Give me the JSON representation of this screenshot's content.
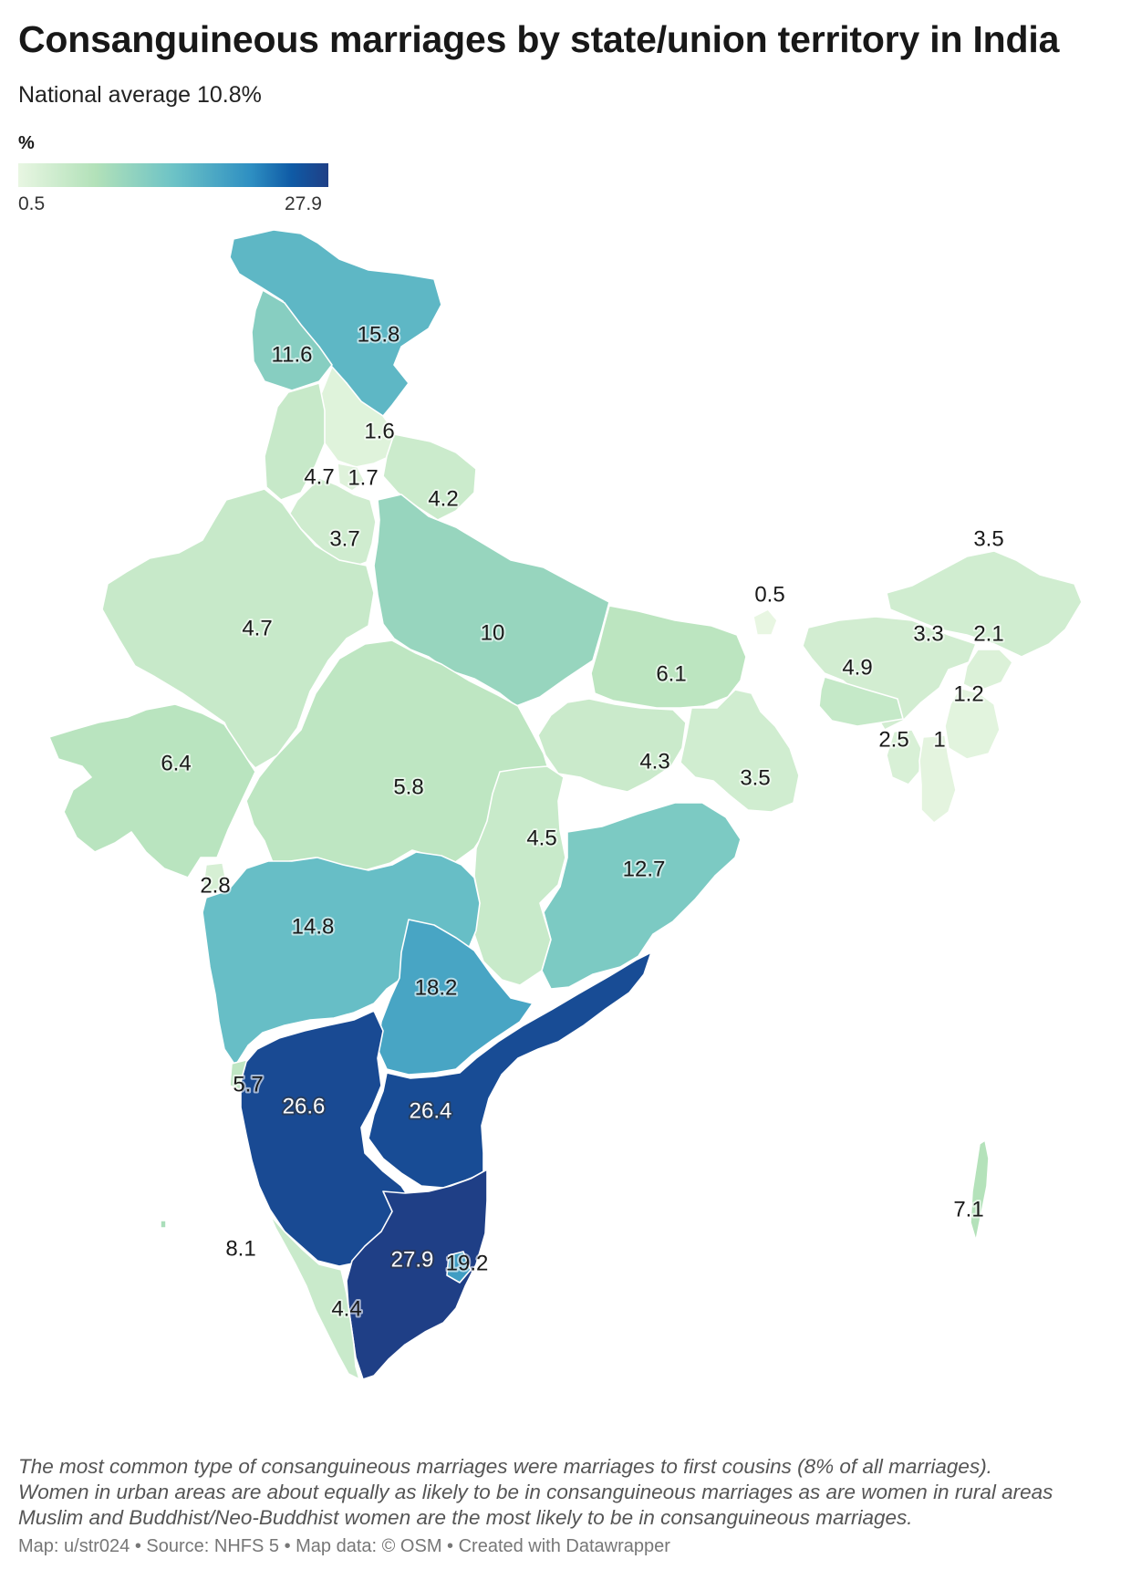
{
  "title": "Consanguineous marriages by state/union territory in India",
  "subtitle": "National average 10.8%",
  "legend": {
    "title": "%",
    "min_label": "0.5",
    "max_label": "27.9",
    "min": 0.5,
    "max": 27.9,
    "colors": [
      "#e8f6e2",
      "#b2e1b9",
      "#6dc3c6",
      "#2e8fc2",
      "#0f5ba6",
      "#1f3f86"
    ]
  },
  "notes": [
    "The most common type of consanguineous marriages were marriages to first cousins (8% of all marriages).",
    "Women in urban areas are about equally as likely to be in consanguineous marriages as are women in rural areas",
    "Muslim and Buddhist/Neo-Buddhist women are the most likely to be in consanguineous marriages."
  ],
  "footer": "Map: u/str024 • Source: NHFS 5 • Map data: © OSM • Created with Datawrapper",
  "chart_data": {
    "type": "choropleth",
    "title": "Consanguineous marriages by state/union territory in India",
    "subtitle": "National average 10.8%",
    "value_unit": "%",
    "scale": [
      0.5,
      27.9
    ],
    "regions": [
      {
        "id": "jammu-kashmir",
        "label": "15.8",
        "value": 15.8
      },
      {
        "id": "ladakh-west",
        "label": "11.6",
        "value": 11.6
      },
      {
        "id": "himachal-pradesh",
        "label": "1.6",
        "value": 1.6
      },
      {
        "id": "punjab",
        "label": "4.7",
        "value": 4.7
      },
      {
        "id": "chandigarh",
        "label": "1.7",
        "value": 1.7
      },
      {
        "id": "uttarakhand",
        "label": "4.2",
        "value": 4.2
      },
      {
        "id": "haryana",
        "label": "3.7",
        "value": 3.7
      },
      {
        "id": "rajasthan",
        "label": "4.7",
        "value": 4.7
      },
      {
        "id": "uttar-pradesh",
        "label": "10",
        "value": 10
      },
      {
        "id": "bihar",
        "label": "6.1",
        "value": 6.1
      },
      {
        "id": "sikkim",
        "label": "0.5",
        "value": 0.5
      },
      {
        "id": "arunachal-pradesh",
        "label": "3.5",
        "value": 3.5
      },
      {
        "id": "assam",
        "label": "3.3",
        "value": 3.3
      },
      {
        "id": "nagaland",
        "label": "2.1",
        "value": 2.1
      },
      {
        "id": "meghalaya",
        "label": "4.9",
        "value": 4.9
      },
      {
        "id": "manipur",
        "label": "1.2",
        "value": 1.2
      },
      {
        "id": "tripura",
        "label": "2.5",
        "value": 2.5
      },
      {
        "id": "mizoram",
        "label": "1",
        "value": 1
      },
      {
        "id": "gujarat",
        "label": "6.4",
        "value": 6.4
      },
      {
        "id": "madhya-pradesh",
        "label": "5.8",
        "value": 5.8
      },
      {
        "id": "jharkhand",
        "label": "4.3",
        "value": 4.3
      },
      {
        "id": "west-bengal",
        "label": "3.5",
        "value": 3.5
      },
      {
        "id": "chhattisgarh",
        "label": "4.5",
        "value": 4.5
      },
      {
        "id": "odisha",
        "label": "12.7",
        "value": 12.7
      },
      {
        "id": "dadra-daman-diu",
        "label": "2.8",
        "value": 2.8
      },
      {
        "id": "maharashtra",
        "label": "14.8",
        "value": 14.8
      },
      {
        "id": "telangana",
        "label": "18.2",
        "value": 18.2
      },
      {
        "id": "goa",
        "label": "5.7",
        "value": 5.7
      },
      {
        "id": "karnataka",
        "label": "26.6",
        "value": 26.6
      },
      {
        "id": "andhra-pradesh",
        "label": "26.4",
        "value": 26.4
      },
      {
        "id": "lakshadweep",
        "label": "8.1",
        "value": 8.1
      },
      {
        "id": "tamil-nadu",
        "label": "27.9",
        "value": 27.9
      },
      {
        "id": "puducherry",
        "label": "19.2",
        "value": 19.2
      },
      {
        "id": "kerala",
        "label": "4.4",
        "value": 4.4
      },
      {
        "id": "andaman-nicobar",
        "label": "7.1",
        "value": 7.1
      }
    ]
  }
}
